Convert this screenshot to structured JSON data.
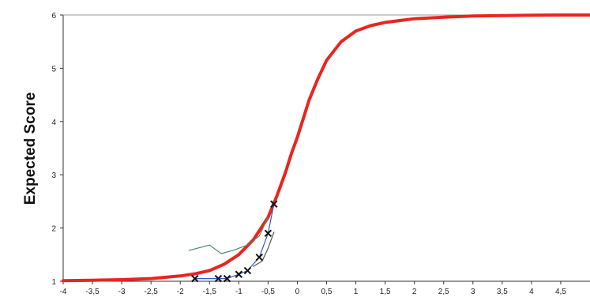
{
  "chart_data": {
    "type": "line",
    "title": "",
    "xlabel": "",
    "ylabel": "Expected Score",
    "xlim": [
      -4,
      5
    ],
    "ylim": [
      1,
      6
    ],
    "x_ticks": [
      "-4",
      "-3,5",
      "-3",
      "-2,5",
      "-2",
      "-1,5",
      "-1",
      "-0,5",
      "0",
      "0,5",
      "1",
      "1,5",
      "2",
      "2,5",
      "3",
      "3,5",
      "4",
      "4,5"
    ],
    "x_tick_values": [
      -4,
      -3.5,
      -3,
      -2.5,
      -2,
      -1.5,
      -1,
      -0.5,
      0,
      0.5,
      1,
      1.5,
      2,
      2.5,
      3,
      3.5,
      4,
      4.5
    ],
    "y_ticks": [
      "1",
      "2",
      "3",
      "4",
      "5",
      "6"
    ],
    "y_tick_values": [
      1,
      2,
      3,
      4,
      5,
      6
    ],
    "grid": false,
    "series": [
      {
        "role": "model-curve",
        "color": "#e8251f",
        "x": [
          -4,
          -3.5,
          -3,
          -2.5,
          -2,
          -1.75,
          -1.5,
          -1.25,
          -1,
          -0.75,
          -0.5,
          -0.35,
          -0.2,
          -0.1,
          0,
          0.1,
          0.2,
          0.35,
          0.5,
          0.75,
          1,
          1.25,
          1.5,
          2,
          2.5,
          3,
          3.5,
          4,
          4.5,
          5
        ],
        "values": [
          1.01,
          1.02,
          1.03,
          1.05,
          1.1,
          1.14,
          1.2,
          1.32,
          1.5,
          1.78,
          2.2,
          2.6,
          3.05,
          3.4,
          3.7,
          4.05,
          4.4,
          4.8,
          5.15,
          5.5,
          5.7,
          5.8,
          5.86,
          5.93,
          5.96,
          5.98,
          5.99,
          5.995,
          6.0,
          6.0
        ]
      },
      {
        "role": "observed-means",
        "color": "#3355cc",
        "marker": "x",
        "x": [
          -1.75,
          -1.35,
          -1.2,
          -1.0,
          -0.85,
          -0.65,
          -0.5,
          -0.4
        ],
        "values": [
          1.05,
          1.05,
          1.05,
          1.13,
          1.2,
          1.45,
          1.9,
          2.45
        ]
      },
      {
        "role": "upper-band",
        "color": "#4a8a6a",
        "x": [
          -1.85,
          -1.5,
          -1.3,
          -1.1,
          -0.85,
          -0.65,
          -0.5
        ],
        "values": [
          1.58,
          1.68,
          1.52,
          1.58,
          1.68,
          1.85,
          2.2
        ]
      },
      {
        "role": "lower-band",
        "color": "#555555",
        "x": [
          -0.75,
          -0.6,
          -0.5,
          -0.4
        ],
        "values": [
          1.28,
          1.38,
          1.62,
          1.92
        ]
      }
    ]
  }
}
